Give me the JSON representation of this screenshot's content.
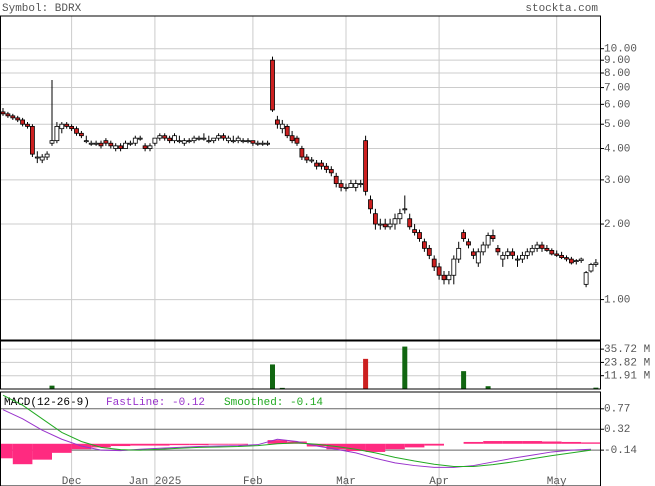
{
  "chart_data": [
    {
      "type": "candlestick",
      "title": "Symbol: BDRX",
      "source": "stockta.com",
      "log_scale": true,
      "grid": true,
      "up_color": "#ffffff",
      "down_color": "#cc2020",
      "categories": [
        null,
        null,
        null,
        null,
        null,
        null,
        null,
        null,
        null,
        null,
        null,
        null,
        null,
        null,
        "Dec",
        null,
        null,
        null,
        null,
        null,
        null,
        null,
        null,
        null,
        null,
        null,
        null,
        null,
        null,
        null,
        null,
        "Jan 2025",
        null,
        null,
        null,
        null,
        null,
        null,
        null,
        null,
        null,
        null,
        null,
        null,
        null,
        null,
        null,
        null,
        null,
        null,
        null,
        "Feb",
        null,
        null,
        null,
        null,
        null,
        null,
        null,
        null,
        null,
        null,
        null,
        null,
        null,
        null,
        null,
        null,
        null,
        null,
        "Mar",
        null,
        null,
        null,
        null,
        null,
        null,
        null,
        null,
        null,
        null,
        null,
        null,
        null,
        null,
        null,
        null,
        null,
        null,
        "Apr",
        null,
        null,
        null,
        null,
        null,
        null,
        null,
        null,
        null,
        null,
        null,
        null,
        null,
        null,
        null,
        null,
        null,
        null,
        null,
        null,
        null,
        null,
        null,
        "May",
        null,
        null,
        null,
        null,
        null,
        null,
        null,
        null
      ],
      "open": [
        5.6,
        5.5,
        5.4,
        5.3,
        5.2,
        5.0,
        4.9,
        3.7,
        3.6,
        3.7,
        4.2,
        4.3,
        4.8,
        5.0,
        4.9,
        4.8,
        4.6,
        4.3,
        4.2,
        4.2,
        4.2,
        4.3,
        4.2,
        4.0,
        4.1,
        4.0,
        4.2,
        4.2,
        4.4,
        4.1,
        4.0,
        4.2,
        4.4,
        4.5,
        4.4,
        4.3,
        4.3,
        4.2,
        4.3,
        4.3,
        4.4,
        4.4,
        4.3,
        4.3,
        4.4,
        4.5,
        4.3,
        4.3,
        4.3,
        4.3,
        4.3,
        4.3,
        4.2,
        4.2,
        4.2,
        9.0,
        5.2,
        4.8,
        4.9,
        4.5,
        4.4,
        4.0,
        3.7,
        3.6,
        3.5,
        3.5,
        3.4,
        3.3,
        3.1,
        2.9,
        2.8,
        2.8,
        2.8,
        2.9,
        4.3,
        2.5,
        2.2,
        2.0,
        2.0,
        1.95,
        2.0,
        2.1,
        2.3,
        2.1,
        1.9,
        1.85,
        1.7,
        1.6,
        1.45,
        1.35,
        1.25,
        1.2,
        1.25,
        1.45,
        1.85,
        1.7,
        1.55,
        1.4,
        1.55,
        1.65,
        1.8,
        1.6,
        1.45,
        1.5,
        1.55,
        1.45,
        1.45,
        1.5,
        1.55,
        1.6,
        1.65,
        1.6,
        1.57,
        1.52,
        1.5,
        1.47,
        1.45,
        1.42,
        1.43,
        1.15,
        1.3,
        1.38
      ],
      "high": [
        5.8,
        5.6,
        5.5,
        5.4,
        5.3,
        5.1,
        5.0,
        3.9,
        3.8,
        3.9,
        7.5,
        5.1,
        5.1,
        5.1,
        5.0,
        4.9,
        4.7,
        4.5,
        4.3,
        4.3,
        4.3,
        4.4,
        4.3,
        4.2,
        4.2,
        4.3,
        4.3,
        4.5,
        4.5,
        4.2,
        4.2,
        4.4,
        4.6,
        4.6,
        4.5,
        4.6,
        4.5,
        4.4,
        4.4,
        4.5,
        4.5,
        4.6,
        4.5,
        4.4,
        4.6,
        4.6,
        4.5,
        4.5,
        4.5,
        4.4,
        4.4,
        4.3,
        4.3,
        4.3,
        4.3,
        9.3,
        5.4,
        5.2,
        5.0,
        4.7,
        4.5,
        4.1,
        3.8,
        3.7,
        3.6,
        3.6,
        3.5,
        3.4,
        3.2,
        3.0,
        2.9,
        3.0,
        3.0,
        3.0,
        4.5,
        2.6,
        2.3,
        2.1,
        2.1,
        2.1,
        2.2,
        2.3,
        2.6,
        2.2,
        2.0,
        1.9,
        1.75,
        1.65,
        1.5,
        1.4,
        1.3,
        1.3,
        1.5,
        1.7,
        1.9,
        1.75,
        1.6,
        1.6,
        1.7,
        1.85,
        1.9,
        1.65,
        1.55,
        1.6,
        1.6,
        1.5,
        1.55,
        1.6,
        1.65,
        1.7,
        1.7,
        1.65,
        1.6,
        1.57,
        1.55,
        1.5,
        1.48,
        1.45,
        1.47,
        1.3,
        1.4,
        1.45
      ],
      "low": [
        5.4,
        5.3,
        5.2,
        5.1,
        4.9,
        4.8,
        3.7,
        3.5,
        3.5,
        3.6,
        4.1,
        4.2,
        4.6,
        4.8,
        4.7,
        4.5,
        4.4,
        4.2,
        4.1,
        4.1,
        4.0,
        4.1,
        4.0,
        3.9,
        3.9,
        4.0,
        4.1,
        4.1,
        4.3,
        3.9,
        3.9,
        4.1,
        4.3,
        4.3,
        4.2,
        4.2,
        4.2,
        4.1,
        4.2,
        4.2,
        4.3,
        4.3,
        4.2,
        4.2,
        4.3,
        4.3,
        4.2,
        4.2,
        4.2,
        4.2,
        4.2,
        4.1,
        4.1,
        4.1,
        4.1,
        5.6,
        4.8,
        4.6,
        4.4,
        4.2,
        4.1,
        3.6,
        3.5,
        3.5,
        3.3,
        3.3,
        3.2,
        3.1,
        2.8,
        2.7,
        2.7,
        2.8,
        2.7,
        2.8,
        2.6,
        2.2,
        1.9,
        1.9,
        1.9,
        1.9,
        1.9,
        2.0,
        2.2,
        1.9,
        1.8,
        1.7,
        1.55,
        1.45,
        1.3,
        1.2,
        1.15,
        1.15,
        1.15,
        1.4,
        1.7,
        1.6,
        1.45,
        1.35,
        1.5,
        1.6,
        1.7,
        1.5,
        1.35,
        1.45,
        1.45,
        1.35,
        1.4,
        1.45,
        1.5,
        1.55,
        1.55,
        1.55,
        1.5,
        1.48,
        1.45,
        1.42,
        1.38,
        1.38,
        1.4,
        1.12,
        1.28,
        1.35
      ],
      "close": [
        5.5,
        5.4,
        5.3,
        5.2,
        5.0,
        4.9,
        3.8,
        3.7,
        3.7,
        3.8,
        4.3,
        4.9,
        5.0,
        4.9,
        4.8,
        4.6,
        4.5,
        4.3,
        4.2,
        4.2,
        4.1,
        4.2,
        4.1,
        4.1,
        4.0,
        4.2,
        4.2,
        4.4,
        4.4,
        4.0,
        4.1,
        4.4,
        4.5,
        4.4,
        4.3,
        4.5,
        4.3,
        4.3,
        4.3,
        4.4,
        4.4,
        4.4,
        4.3,
        4.4,
        4.5,
        4.4,
        4.4,
        4.3,
        4.4,
        4.3,
        4.3,
        4.2,
        4.2,
        4.2,
        4.2,
        5.7,
        5.0,
        5.0,
        4.5,
        4.3,
        4.2,
        3.7,
        3.6,
        3.6,
        3.4,
        3.4,
        3.3,
        3.2,
        2.9,
        2.8,
        2.8,
        2.9,
        2.9,
        2.9,
        2.7,
        2.3,
        2.0,
        2.0,
        1.95,
        2.0,
        2.1,
        2.2,
        2.3,
        1.95,
        1.85,
        1.75,
        1.6,
        1.5,
        1.35,
        1.25,
        1.2,
        1.25,
        1.45,
        1.6,
        1.75,
        1.65,
        1.5,
        1.55,
        1.65,
        1.8,
        1.75,
        1.55,
        1.5,
        1.55,
        1.5,
        1.45,
        1.5,
        1.55,
        1.6,
        1.65,
        1.6,
        1.57,
        1.52,
        1.5,
        1.47,
        1.45,
        1.4,
        1.43,
        1.45,
        1.28,
        1.38,
        1.4
      ],
      "ylim": [
        0.69,
        13.5
      ],
      "yticks": [
        {
          "value": 1,
          "label": "1.00"
        },
        {
          "value": 2,
          "label": "2.00"
        },
        {
          "value": 3,
          "label": "3.00"
        },
        {
          "value": 4,
          "label": "4.00"
        },
        {
          "value": 5,
          "label": "5.00"
        },
        {
          "value": 6,
          "label": "6.00"
        },
        {
          "value": 7,
          "label": "7.00"
        },
        {
          "value": 8,
          "label": "8.00"
        },
        {
          "value": 9,
          "label": "9.00"
        },
        {
          "value": 10,
          "label": "10.00"
        }
      ]
    },
    {
      "type": "bar",
      "up_color": "#116611",
      "down_color": "#cc2020",
      "values": [
        0.3,
        0.3,
        0.3,
        0.3,
        0.3,
        0.3,
        0.3,
        0.3,
        0.3,
        0.3,
        3.0,
        0.3,
        0.3,
        0.3,
        0.3,
        0.3,
        0.3,
        0.3,
        0.3,
        0.3,
        0.3,
        0.3,
        0.3,
        0.3,
        0.3,
        0.3,
        0.3,
        0.3,
        0.3,
        0.3,
        0.3,
        0.3,
        0.3,
        0.3,
        0.3,
        0.3,
        0.3,
        0.3,
        0.3,
        0.3,
        0.3,
        0.3,
        0.3,
        0.3,
        0.3,
        0.3,
        0.3,
        0.3,
        0.3,
        0.3,
        0.3,
        0.3,
        0.3,
        0.3,
        0.3,
        22,
        0.3,
        1.0,
        0.3,
        0.3,
        0.3,
        0.3,
        0.3,
        0.3,
        0.3,
        0.3,
        0.3,
        0.3,
        0.3,
        0.3,
        0.3,
        0.3,
        0.3,
        0.3,
        27,
        0.3,
        0.3,
        0.3,
        0.3,
        0.3,
        0.3,
        0.3,
        38,
        0.3,
        0.3,
        0.3,
        0.3,
        0.3,
        0.3,
        0.3,
        0.3,
        0.3,
        0.3,
        0.3,
        16,
        0.3,
        0.3,
        0.3,
        0.3,
        2.5,
        0.3,
        0.3,
        0.3,
        0.3,
        0.3,
        0.3,
        0.3,
        0.3,
        0.3,
        0.3,
        0.3,
        0.3,
        0.3,
        0.3,
        0.3,
        0.3,
        0.3,
        0.3,
        0.3,
        0.3,
        0.3,
        1.2
      ],
      "ylim": [
        0,
        43
      ],
      "yticks": [
        {
          "value": 11.91,
          "label": "11.91 M"
        },
        {
          "value": 23.82,
          "label": "23.82 M"
        },
        {
          "value": 35.72,
          "label": "35.72 M"
        }
      ]
    },
    {
      "type": "line",
      "title": "MACD(12-26-9)",
      "x": [
        0,
        4,
        8,
        12,
        16,
        20,
        24,
        28,
        32,
        36,
        40,
        44,
        48,
        52,
        56,
        60,
        64,
        68,
        72,
        76,
        80,
        84,
        88,
        92,
        96,
        100,
        104,
        108,
        112,
        116,
        120
      ],
      "series": [
        {
          "name": "FastLine: -0.12",
          "color": "#9933cc",
          "values": [
            0.75,
            0.55,
            0.3,
            0.1,
            -0.05,
            -0.14,
            -0.15,
            -0.12,
            -0.1,
            -0.08,
            -0.06,
            -0.05,
            -0.04,
            -0.02,
            0.1,
            0.05,
            -0.05,
            -0.12,
            -0.2,
            -0.32,
            -0.42,
            -0.48,
            -0.52,
            -0.52,
            -0.48,
            -0.4,
            -0.32,
            -0.25,
            -0.18,
            -0.14,
            -0.12
          ]
        },
        {
          "name": "Smoothed: -0.14",
          "color": "#22aa22",
          "values": [
            1.07,
            0.85,
            0.55,
            0.25,
            0.05,
            -0.08,
            -0.13,
            -0.14,
            -0.12,
            -0.1,
            -0.08,
            -0.07,
            -0.06,
            -0.04,
            0.0,
            0.02,
            -0.01,
            -0.06,
            -0.12,
            -0.2,
            -0.3,
            -0.38,
            -0.45,
            -0.5,
            -0.5,
            -0.46,
            -0.4,
            -0.33,
            -0.26,
            -0.2,
            -0.14
          ]
        }
      ],
      "histogram": {
        "color": "#ff2a80",
        "values": [
          -0.32,
          -0.45,
          -0.35,
          -0.2,
          -0.12,
          -0.08,
          -0.05,
          -0.04,
          -0.04,
          -0.03,
          -0.03,
          -0.02,
          -0.02,
          0.0,
          0.08,
          0.05,
          -0.06,
          -0.12,
          -0.16,
          -0.18,
          -0.12,
          -0.08,
          -0.04,
          0.0,
          0.04,
          0.06,
          0.06,
          0.06,
          0.05,
          0.04,
          0.03
        ]
      },
      "ylim": [
        -0.93,
        1.14
      ],
      "yticks": [
        -0.14,
        0.32,
        0.77
      ]
    }
  ]
}
